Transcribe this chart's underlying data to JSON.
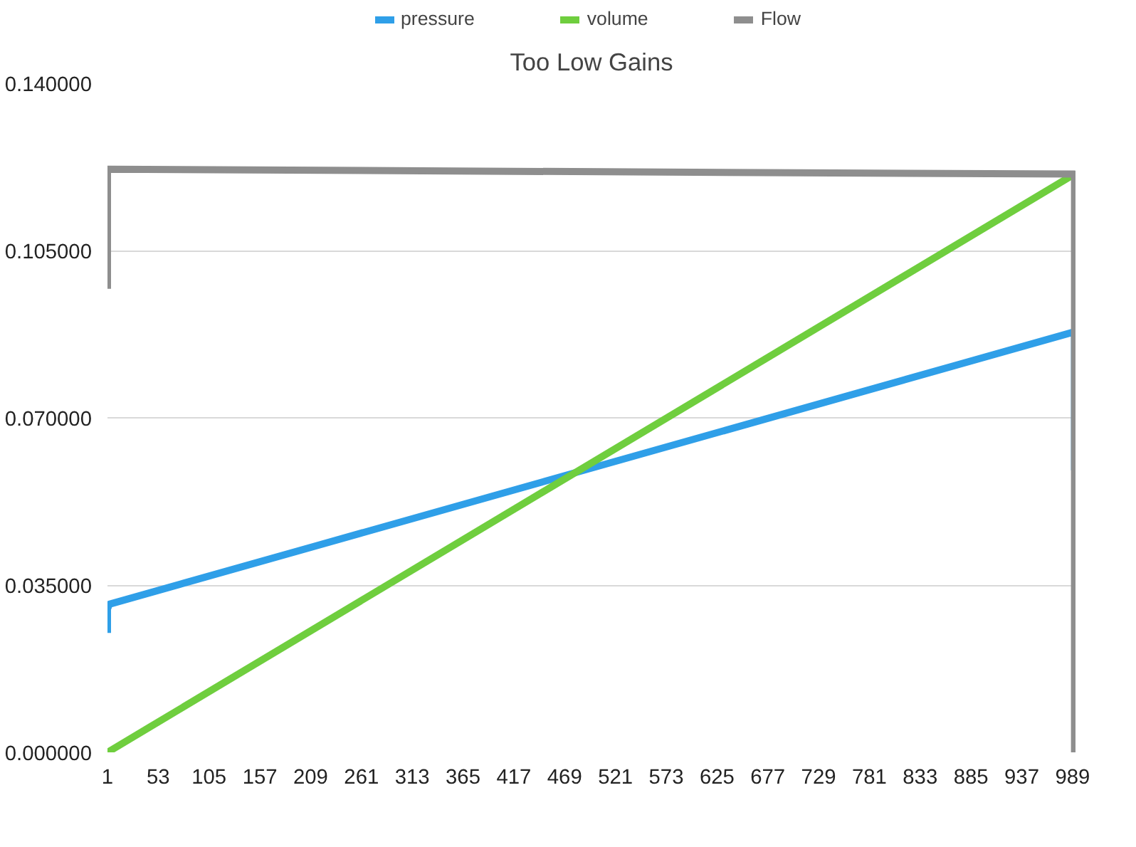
{
  "chart_data": {
    "type": "line",
    "title": "Too Low Gains",
    "xlim": [
      1,
      992
    ],
    "xticks": [
      1,
      53,
      105,
      157,
      209,
      261,
      313,
      365,
      417,
      469,
      521,
      573,
      625,
      677,
      729,
      781,
      833,
      885,
      937,
      989
    ],
    "ylim": [
      0,
      0.14
    ],
    "yticks": [
      {
        "value": 0,
        "label": "0.000000"
      },
      {
        "value": 0.035,
        "label": "0.035000"
      },
      {
        "value": 0.07,
        "label": "0.070000"
      },
      {
        "value": 0.105,
        "label": "0.105000"
      },
      {
        "value": 0.14,
        "label": "0.140000"
      }
    ],
    "series": [
      {
        "name": "pressure",
        "color": "#2f9fe8",
        "x": [
          1,
          1,
          3,
          991,
          991
        ],
        "values": [
          0.025,
          0.03,
          0.031,
          0.088,
          0.059
        ]
      },
      {
        "name": "volume",
        "color": "#6fce3e",
        "x": [
          1,
          991
        ],
        "values": [
          0,
          0.121
        ]
      },
      {
        "name": "Flow",
        "color": "#8e8e8e",
        "x": [
          1,
          1,
          3,
          991,
          991
        ],
        "values": [
          0.097,
          0.122,
          0.122,
          0.121,
          0
        ]
      }
    ],
    "grid": "y",
    "legend": "top",
    "marker": "none",
    "line_style": "solid"
  }
}
